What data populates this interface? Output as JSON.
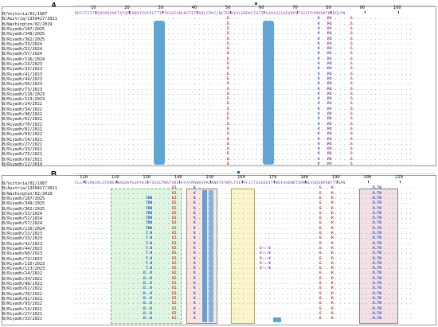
{
  "panel_a": {
    "label": "A.",
    "ruler": [
      "10",
      "20",
      "30",
      "40",
      "50",
      "60",
      "70",
      "80",
      "90",
      "100"
    ],
    "first_seq": "DRICTGITSSNSPHVVKTATQGEVNVTGVIPLTTTPTKSHFANLKGTETRGKLCPKCLNCTDLDVALGRPKCTGTIPSARASILHEVRPVTSGCFPIMHDRTKIRQLPN",
    "names": [
      "B/Victoria/02/1987",
      "B/Austria/1359417/2021",
      "B/Washington/02/2019",
      "B/Riyadh/187/2025",
      "B/Riyadh/349/2025",
      "B/Riyadh/362/2025",
      "B/Riyadh/33/2024",
      "B/Riyadh/52/2024",
      "B/Riyadh/57/2024",
      "B/Riyadh/116/2024",
      "B/Riyadh/23/2023",
      "B/Riyadh/33/2023",
      "B/Riyadh/41/2023",
      "B/Riyadh/44/2023",
      "B/Riyadh/60/2023",
      "B/Riyadh/73/2023",
      "B/Riyadh/110/2023",
      "B/Riyadh/113/2023",
      "B/Riyadh/24/2022",
      "B/Riyadh/34/2022",
      "B/Riyadh/48/2022",
      "B/Riyadh/62/2022",
      "B/Riyadh/70/2022",
      "B/Riyadh/81/2022",
      "B/Riyadh/93/2022",
      "B/Riyadh/14/2021",
      "B/Riyadh/27/2021",
      "B/Riyadh/33/2021",
      "B/Riyadh/75/2021",
      "B/Riyadh/99/2021",
      "B/Riyadh/12/2019"
    ],
    "mut_e": "E",
    "mut_k": "K",
    "mut_rv": "RV",
    "mut_s": "S"
  },
  "panel_b": {
    "label": "B.",
    "ruler": [
      "110",
      "120",
      "130",
      "140",
      "150",
      "160",
      "170",
      "180",
      "190",
      "200",
      "210"
    ],
    "first_seq": "CLLPEGRNIRLSTHNVINAEDAPGGPYKIGTSGSCPNATSKSGFFATMAWAVPKDNNKTATNPLTVEVPFICTEGEDQITVWGFHSDNKTQMKNLYGDSNPQKFTSSAN",
    "names": [
      "B/Victoria/02/1987",
      "B/Austria/1359417/2021",
      "B/Washington/02/2019",
      "B/Riyadh/187/2025",
      "B/Riyadh/349/2025",
      "B/Riyadh/362/2025",
      "B/Riyadh/33/2024",
      "B/Riyadh/52/2024",
      "B/Riyadh/57/2024",
      "B/Riyadh/116/2024",
      "B/Riyadh/23/2023",
      "B/Riyadh/33/2023",
      "B/Riyadh/41/2023",
      "B/Riyadh/44/2023",
      "B/Riyadh/60/2023",
      "B/Riyadh/73/2023",
      "B/Riyadh/110/2023",
      "B/Riyadh/113/2023",
      "B/Riyadh/24/2022",
      "B/Riyadh/34/2022",
      "B/Riyadh/48/2022",
      "B/Riyadh/62/2022",
      "B/Riyadh/70/2022",
      "B/Riyadh/81/2022",
      "B/Riyadh/93/2022",
      "B/Riyadh/14/2021",
      "B/Riyadh/27/2021",
      "B/Riyadh/33/2021"
    ],
    "mut_tdn": "TDN",
    "mut_tn": "T.N",
    "mut_dr": "D..R",
    "mut_ei": "EI",
    "mut_ka": "K",
    "mut_x": "X---X",
    "mut_e": "E",
    "mut_r": "R",
    "mut_dtn": "D.TN"
  },
  "colors": {
    "highlight_blue": "#5a9fd1",
    "green_box": "#d8f3d8",
    "yellow_box": "#fbf6c9",
    "pink_box": "#f7e0df",
    "mutation_red": "#c0392b",
    "seq_blue": "#3d6fb6"
  }
}
